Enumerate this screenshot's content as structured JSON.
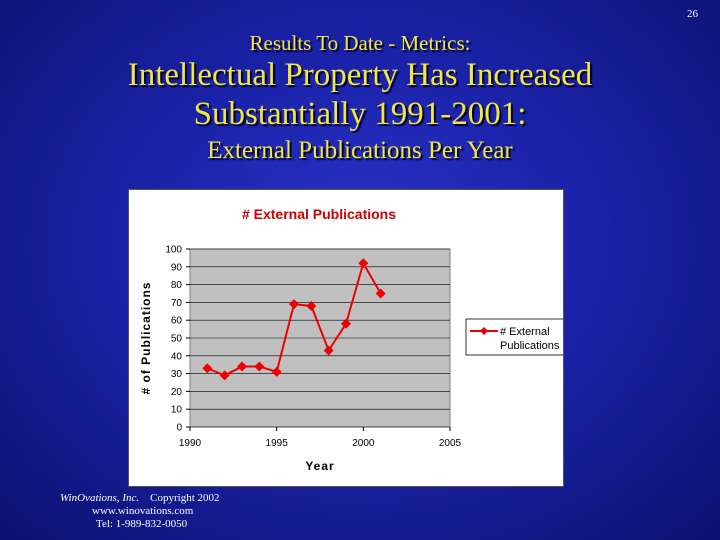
{
  "slide": {
    "number": "26"
  },
  "title": {
    "pre": "Results To Date - Metrics:",
    "line1": "Intellectual Property Has Increased",
    "line2": "Substantially 1991-2001:",
    "sub": "External Publications Per Year"
  },
  "colors": {
    "title": "#f2e642",
    "series": "#ee0000",
    "plot_area": "#c0c0c0"
  },
  "chart_data": {
    "type": "line",
    "title": "# External Publications",
    "xlabel": "Year",
    "ylabel": "# of Publications",
    "xlim": [
      1990,
      2005
    ],
    "ylim": [
      0,
      100
    ],
    "xticks": [
      "1990",
      "1995",
      "2000",
      "2005"
    ],
    "yticks": [
      "0",
      "10",
      "20",
      "30",
      "40",
      "50",
      "60",
      "70",
      "80",
      "90",
      "100"
    ],
    "grid": true,
    "legend_position": "right",
    "series": [
      {
        "name": "# External Publications",
        "legend_lines": [
          "# External",
          "Publications"
        ],
        "marker": "diamond",
        "x": [
          1991,
          1992,
          1993,
          1994,
          1995,
          1996,
          1997,
          1998,
          1999,
          2000,
          2001
        ],
        "y": [
          33,
          29,
          34,
          34,
          31,
          69,
          68,
          43,
          58,
          92,
          75
        ]
      }
    ]
  },
  "footer": {
    "company": "WinOvations, Inc.",
    "copyright": "Copyright 2002",
    "website": "www.winovations.com",
    "phone": "Tel:  1-989-832-0050"
  }
}
